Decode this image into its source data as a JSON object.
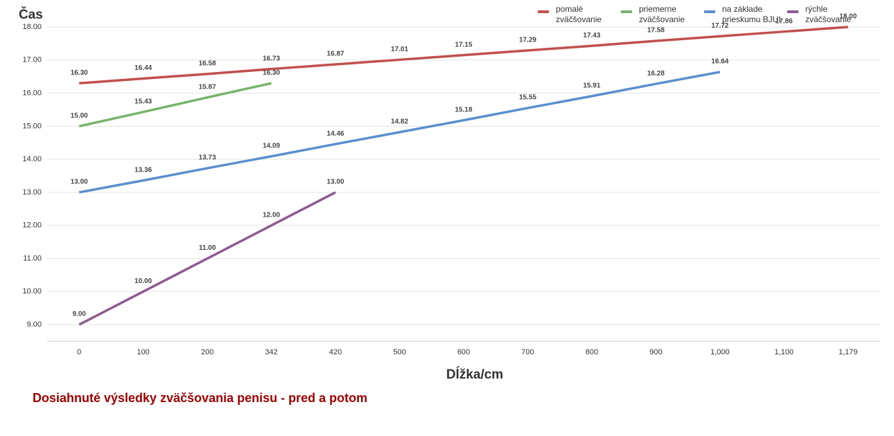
{
  "chart_data": {
    "type": "line",
    "y_label": "Čas",
    "x_label": "Dĺžka/cm",
    "caption": "Dosiahnuté výsledky zväčšovania penisu - pred a potom",
    "categories": [
      "0",
      "100",
      "200",
      "342",
      "420",
      "500",
      "600",
      "700",
      "800",
      "900",
      "1,000",
      "1,100",
      "1,179"
    ],
    "series": [
      {
        "name": "pomalé zväčšovanie",
        "color": "#c0504d",
        "values": [
          16.3,
          16.44,
          16.58,
          16.73,
          16.87,
          17.01,
          17.15,
          17.29,
          17.43,
          17.58,
          17.72,
          17.86,
          18.0
        ],
        "value_labels": [
          "16.30",
          "16.44",
          "16.58",
          "16.73",
          "16.87",
          "17.01",
          "17.15",
          "17.29",
          "17.43",
          "17.58",
          "17.72",
          "17.86",
          "18.00"
        ]
      },
      {
        "name": "priemerne zväčšovanie",
        "color": "#77b36b",
        "values": [
          15.0,
          15.43,
          15.87,
          16.3,
          null,
          null,
          null,
          null,
          null,
          null,
          null,
          null,
          null
        ],
        "value_labels": [
          "15.00",
          "15.43",
          "15.87",
          "16.30",
          null,
          null,
          null,
          null,
          null,
          null,
          null,
          null,
          null
        ]
      },
      {
        "name": "na základe prieskumu BJUI",
        "color": "#5b8fcd",
        "values": [
          13.0,
          13.36,
          13.73,
          14.09,
          14.46,
          14.82,
          15.18,
          15.55,
          15.91,
          16.28,
          16.64,
          null,
          null
        ],
        "value_labels": [
          "13.00",
          "13.36",
          "13.73",
          "14.09",
          "14.46",
          "14.82",
          "15.18",
          "15.55",
          "15.91",
          "16.28",
          "16.64",
          null,
          null
        ]
      },
      {
        "name": "rýchle zväčšovanie",
        "color": "#8e5a94",
        "values": [
          9.0,
          10.0,
          11.0,
          12.0,
          13.0,
          null,
          null,
          null,
          null,
          null,
          null,
          null,
          null
        ],
        "value_labels": [
          "9.00",
          "10.00",
          "11.00",
          "12.00",
          "13.00",
          null,
          null,
          null,
          null,
          null,
          null,
          null,
          null
        ]
      }
    ],
    "ylim": [
      8.5,
      18
    ],
    "yticks": [
      {
        "value": 9,
        "label": "9.00"
      },
      {
        "value": 10,
        "label": "10.00"
      },
      {
        "value": 11,
        "label": "11.00"
      },
      {
        "value": 12,
        "label": "12.00"
      },
      {
        "value": 13,
        "label": "13.00"
      },
      {
        "value": 14,
        "label": "14.00"
      },
      {
        "value": 15,
        "label": "15.00"
      },
      {
        "value": 16,
        "label": "16.00"
      },
      {
        "value": 17,
        "label": "17.00"
      },
      {
        "value": 18,
        "label": "18.00"
      }
    ],
    "grid": true
  }
}
